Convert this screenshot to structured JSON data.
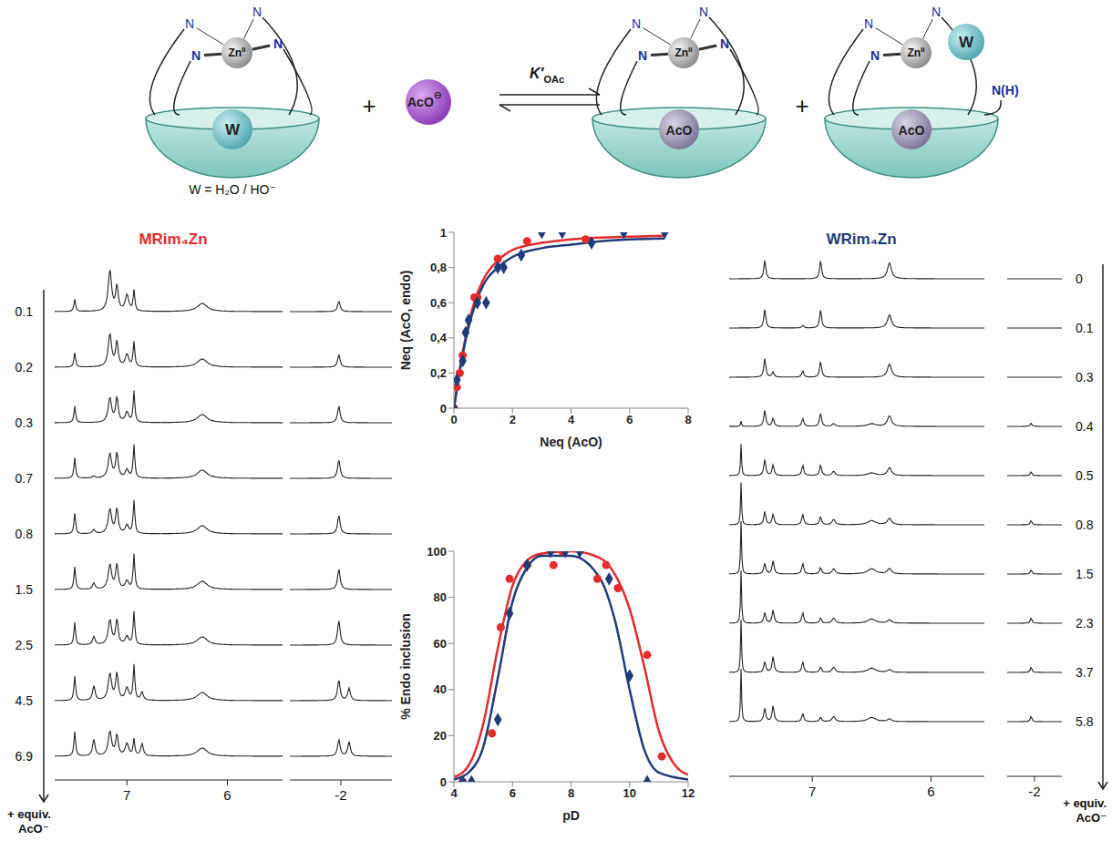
{
  "scheme": {
    "hosts": [
      {
        "metal": "Zn",
        "oxidation": "II",
        "ligands": [
          "N",
          "N",
          "N",
          "N"
        ],
        "guest": "W"
      },
      {
        "metal": "Zn",
        "oxidation": "II",
        "ligands": [
          "N",
          "N",
          "N",
          "N"
        ],
        "guest": "AcO"
      },
      {
        "metal": "Zn",
        "oxidation": "II",
        "ligands": [
          "N",
          "N",
          "N"
        ],
        "guest": "AcO",
        "apical": "W",
        "free_arm": "N(H)"
      }
    ],
    "anion": {
      "label": "AcO",
      "charge": "⊖"
    },
    "plus": "+",
    "constant": {
      "symbol": "K′",
      "subscript": "OAc"
    },
    "note": "W = H₂O / HO⁻"
  },
  "spectra": [
    {
      "title": "MRim₄Zn",
      "color": "#e32d2d",
      "row_labels": [
        "0.1",
        "0.2",
        "0.3",
        "0.7",
        "0.8",
        "1.5",
        "2.5",
        "4.5",
        "6.9"
      ],
      "xlim": [
        [
          7.72,
          5.45
        ],
        [
          -1.5,
          -2.5
        ]
      ],
      "xticks": [
        7,
        6,
        -2
      ],
      "axis_label": [
        "+ equiv.",
        "AcO⁻"
      ],
      "peaks": [
        {
          "ppm": 7.52,
          "fwhm": 0.02,
          "heights": [
            0.3,
            0.35,
            0.4,
            0.5,
            0.5,
            0.55,
            0.55,
            0.6,
            0.6
          ]
        },
        {
          "ppm": 7.33,
          "fwhm": 0.03,
          "heights": [
            0,
            0,
            0,
            0.05,
            0.1,
            0.15,
            0.2,
            0.35,
            0.4
          ]
        },
        {
          "ppm": 7.17,
          "fwhm": 0.04,
          "heights": [
            1,
            0.8,
            0.6,
            0.6,
            0.6,
            0.6,
            0.6,
            0.65,
            0.6
          ]
        },
        {
          "ppm": 7.1,
          "fwhm": 0.03,
          "heights": [
            0.6,
            0.6,
            0.6,
            0.6,
            0.6,
            0.6,
            0.6,
            0.65,
            0.5
          ]
        },
        {
          "ppm": 7.0,
          "fwhm": 0.04,
          "heights": [
            0.4,
            0.3,
            0.25,
            0.2,
            0.2,
            0.2,
            0.2,
            0.3,
            0.3
          ]
        },
        {
          "ppm": 6.93,
          "fwhm": 0.02,
          "heights": [
            0.5,
            0.6,
            0.75,
            0.8,
            0.8,
            0.85,
            0.8,
            0.85,
            0.4
          ]
        },
        {
          "ppm": 6.85,
          "fwhm": 0.03,
          "heights": [
            0,
            0,
            0,
            0,
            0,
            0,
            0,
            0.2,
            0.3
          ]
        },
        {
          "ppm": 6.25,
          "fwhm": 0.12,
          "heights": [
            0.2,
            0.2,
            0.2,
            0.2,
            0.2,
            0.2,
            0.2,
            0.2,
            0.2
          ]
        },
        {
          "ppm": -1.98,
          "fwhm": 0.03,
          "heights": [
            0.25,
            0.3,
            0.4,
            0.45,
            0.45,
            0.5,
            0.6,
            0.5,
            0.4
          ]
        },
        {
          "ppm": -2.08,
          "fwhm": 0.03,
          "heights": [
            0,
            0,
            0,
            0,
            0,
            0,
            0,
            0.3,
            0.35
          ]
        }
      ]
    },
    {
      "title": "WRim₄Zn",
      "color": "#1f3b78",
      "row_labels": [
        "0",
        "0.1",
        "0.3",
        "0.4",
        "0.5",
        "0.8",
        "1.5",
        "2.3",
        "3.7",
        "5.8"
      ],
      "xlim": [
        [
          7.7,
          5.55
        ],
        [
          -1.6,
          -2.4
        ]
      ],
      "xticks": [
        7,
        6,
        -2
      ],
      "axis_label": [
        "+ equiv.",
        "AcO⁻"
      ],
      "peaks": [
        {
          "ppm": 7.6,
          "fwhm": 0.01,
          "heights": [
            0,
            0,
            0,
            0.1,
            0.6,
            0.8,
            1,
            1,
            1,
            1
          ]
        },
        {
          "ppm": 7.4,
          "fwhm": 0.02,
          "heights": [
            0.35,
            0.35,
            0.35,
            0.3,
            0.3,
            0.25,
            0.2,
            0.2,
            0.2,
            0.25
          ]
        },
        {
          "ppm": 7.33,
          "fwhm": 0.02,
          "heights": [
            0,
            0,
            0.1,
            0.15,
            0.2,
            0.2,
            0.25,
            0.25,
            0.3,
            0.3
          ]
        },
        {
          "ppm": 7.08,
          "fwhm": 0.02,
          "heights": [
            0,
            0.05,
            0.12,
            0.15,
            0.2,
            0.2,
            0.2,
            0.2,
            0.2,
            0.15
          ]
        },
        {
          "ppm": 6.93,
          "fwhm": 0.02,
          "heights": [
            0.35,
            0.35,
            0.3,
            0.25,
            0.2,
            0.15,
            0.12,
            0.1,
            0.1,
            0.08
          ]
        },
        {
          "ppm": 6.82,
          "fwhm": 0.03,
          "heights": [
            0,
            0,
            0,
            0.05,
            0.08,
            0.1,
            0.1,
            0.1,
            0.1,
            0.1
          ]
        },
        {
          "ppm": 6.5,
          "fwhm": 0.08,
          "heights": [
            0,
            0,
            0,
            0.05,
            0.05,
            0.08,
            0.1,
            0.08,
            0.08,
            0.08
          ]
        },
        {
          "ppm": 6.35,
          "fwhm": 0.04,
          "heights": [
            0.3,
            0.25,
            0.25,
            0.2,
            0.15,
            0.12,
            0.1,
            0.06,
            0.05,
            0.05
          ]
        },
        {
          "ppm": -1.95,
          "fwhm": 0.03,
          "heights": [
            0,
            0,
            0,
            0.06,
            0.07,
            0.08,
            0.08,
            0.1,
            0.1,
            0.1
          ]
        }
      ]
    }
  ],
  "chart_data": [
    {
      "type": "scatter",
      "x_label": "Neq (AcO)",
      "y_label": "Neq (AcO, endo)",
      "xlim": [
        0,
        8
      ],
      "xticks": [
        0,
        2,
        4,
        6,
        8
      ],
      "ylim": [
        0,
        1
      ],
      "yticks": [
        0,
        {
          "value": 0.2,
          "label": "0,2"
        },
        {
          "value": 0.4,
          "label": "0,4"
        },
        {
          "value": 0.6,
          "label": "0,6"
        },
        {
          "value": 0.8,
          "label": "0,8"
        },
        1
      ],
      "grid": false,
      "series": [
        {
          "type": "line",
          "color": "#e52b2b",
          "line_style": "solid",
          "x": [
            0,
            0.25,
            0.5,
            0.75,
            1,
            1.5,
            2,
            3,
            4,
            5,
            6,
            7.2
          ],
          "values": [
            0,
            0.27,
            0.48,
            0.63,
            0.73,
            0.84,
            0.9,
            0.94,
            0.96,
            0.97,
            0.975,
            0.98
          ]
        },
        {
          "type": "line",
          "color": "#1f3b78",
          "line_style": "solid",
          "x": [
            0,
            0.25,
            0.5,
            0.75,
            1,
            1.5,
            2,
            3,
            4,
            5,
            6,
            7.2
          ],
          "values": [
            0,
            0.26,
            0.46,
            0.6,
            0.7,
            0.8,
            0.86,
            0.91,
            0.93,
            0.95,
            0.96,
            0.965
          ]
        },
        {
          "type": "scatter",
          "color": "#e52b2b",
          "marker": "circle",
          "x": [
            0,
            0.1,
            0.2,
            0.3,
            0.7,
            0.8,
            1.5,
            2.5,
            4.5
          ],
          "values": [
            0,
            0.12,
            0.2,
            0.3,
            0.63,
            0.63,
            0.85,
            0.95,
            0.96
          ]
        },
        {
          "type": "scatter",
          "color": "#1f3b78",
          "marker": "diamond",
          "x": [
            0,
            0.1,
            0.3,
            0.4,
            0.5,
            0.8,
            1.1,
            1.5,
            1.7,
            2.3,
            3,
            3.7,
            4.7,
            5.8,
            7.2
          ],
          "values": [
            0,
            0.16,
            0.27,
            0.43,
            0.5,
            0.6,
            0.6,
            0.8,
            0.8,
            0.87,
            1,
            1,
            0.94,
            1,
            1
          ]
        }
      ]
    },
    {
      "type": "scatter",
      "x_label": "pD",
      "y_label": "% Endo inclusion",
      "xlim": [
        4,
        12
      ],
      "xticks": [
        4,
        6,
        8,
        10,
        12
      ],
      "ylim": [
        0,
        100
      ],
      "yticks": [
        0,
        20,
        40,
        60,
        80,
        100
      ],
      "grid": false,
      "series": [
        {
          "type": "line",
          "color": "#e52b2b",
          "line_style": "solid",
          "x": [
            4,
            4.5,
            5,
            5.5,
            6,
            6.5,
            7,
            8,
            9,
            9.5,
            10,
            10.5,
            11,
            11.5,
            12
          ],
          "values": [
            2,
            7,
            25,
            58,
            85,
            96,
            99,
            100,
            97,
            90,
            75,
            50,
            22,
            8,
            3
          ]
        },
        {
          "type": "line",
          "color": "#1f3b78",
          "line_style": "solid",
          "x": [
            4,
            4.5,
            5,
            5.5,
            6,
            6.5,
            7,
            8,
            9,
            9.5,
            10,
            10.5,
            11,
            12
          ],
          "values": [
            1,
            4,
            15,
            45,
            78,
            93,
            98,
            98,
            88,
            70,
            40,
            14,
            4,
            1
          ]
        },
        {
          "type": "scatter",
          "color": "#e52b2b",
          "marker": "circle",
          "x": [
            4.3,
            5.3,
            5.6,
            5.9,
            6.5,
            7.4,
            7.7,
            8.9,
            9.2,
            9.6,
            10.6,
            11.1
          ],
          "values": [
            0,
            21,
            67,
            88,
            94,
            94,
            100,
            88,
            94,
            84,
            55,
            11
          ]
        },
        {
          "type": "scatter",
          "color": "#1f3b78",
          "marker": "diamond",
          "x": [
            4.3,
            4.6,
            5.5,
            5.9,
            6.5,
            7.3,
            7.8,
            8.3,
            9.3,
            10,
            10.6
          ],
          "values": [
            0,
            0,
            27,
            73,
            94,
            100,
            100,
            100,
            88,
            46,
            0
          ]
        }
      ]
    }
  ]
}
